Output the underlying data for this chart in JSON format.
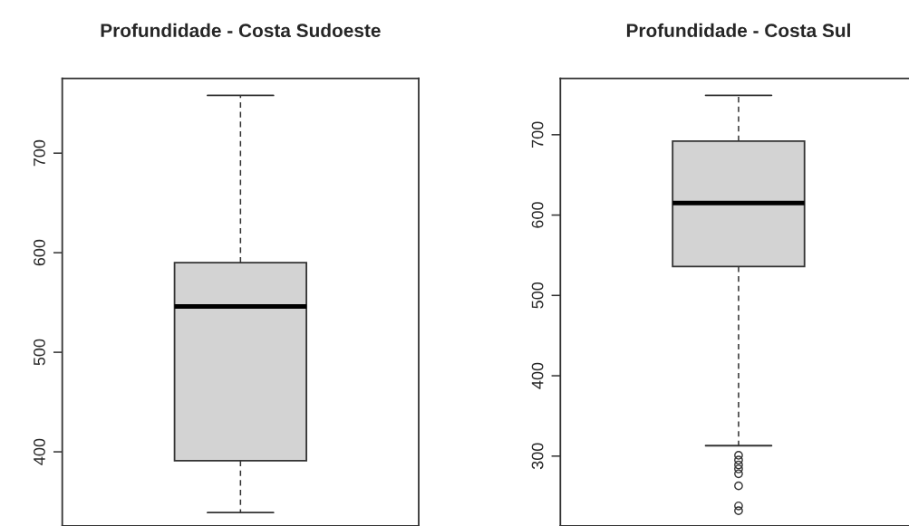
{
  "chart_data": [
    {
      "type": "box",
      "title": "Profundidade - Costa Sudoeste",
      "categories": [
        null
      ],
      "ylim": [
        325.5,
        775
      ],
      "yticks": [
        400,
        500,
        600,
        700
      ],
      "grid": false,
      "color": "#d3d3d3",
      "boxes": [
        {
          "low": 339,
          "q1": 391,
          "median": 546,
          "q3": 590,
          "high": 758
        }
      ]
    },
    {
      "type": "box",
      "title": "Profundidade - Costa Sul",
      "categories": [
        null
      ],
      "ylim": [
        213,
        770
      ],
      "yticks": [
        300,
        400,
        500,
        600,
        700
      ],
      "grid": false,
      "color": "#d3d3d3",
      "boxes": [
        {
          "low": 313,
          "q1": 536,
          "median": 615,
          "q3": 692,
          "high": 749,
          "outliers": [
            301,
            295,
            289,
            284,
            278,
            263,
            238,
            232
          ]
        }
      ]
    }
  ]
}
